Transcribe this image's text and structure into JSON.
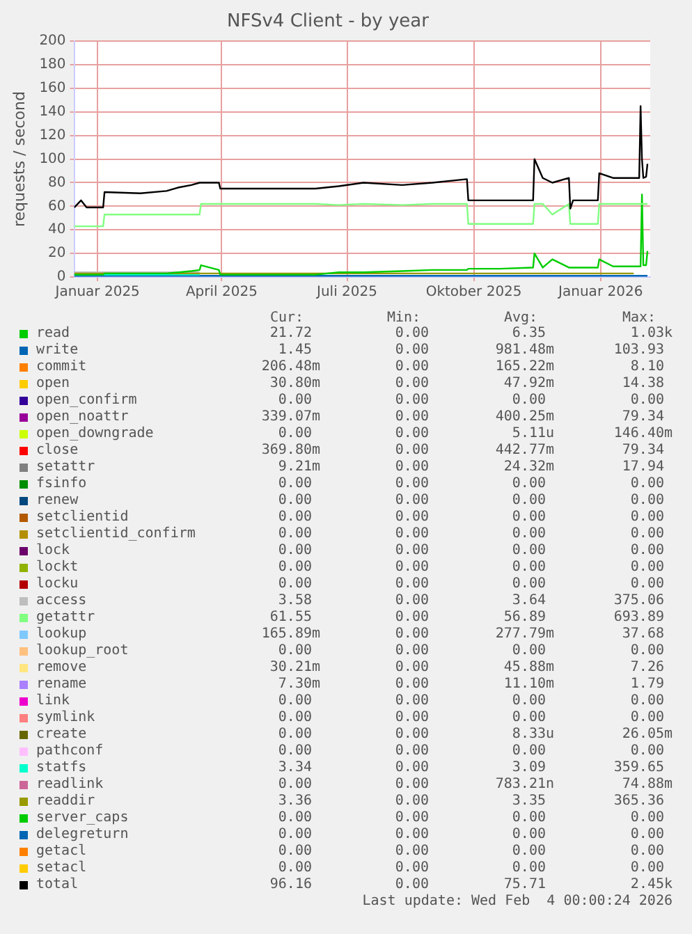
{
  "chart_data": {
    "type": "line",
    "title": "NFSv4 Client - by year",
    "ylabel": "requests / second",
    "x": [
      "2024-12-15",
      "2024-12-20",
      "2024-12-24",
      "2025-01-05",
      "2025-01-06",
      "2025-02-01",
      "2025-02-20",
      "2025-03-01",
      "2025-03-10",
      "2025-03-16",
      "2025-03-17",
      "2025-03-30",
      "2025-03-31",
      "2025-05-01",
      "2025-06-08",
      "2025-06-25",
      "2025-07-13",
      "2025-08-10",
      "2025-09-01",
      "2025-09-26",
      "2025-09-27",
      "2025-10-20",
      "2025-11-13",
      "2025-11-14",
      "2025-11-20",
      "2025-11-27",
      "2025-12-09",
      "2025-12-10",
      "2025-12-12",
      "2025-12-30",
      "2025-12-31",
      "2026-01-10",
      "2026-01-29",
      "2026-01-30",
      "2026-01-31",
      "2026-02-01",
      "2026-02-03",
      "2026-02-04"
    ],
    "xlim": [
      "2024-12-15",
      "2026-02-06"
    ],
    "xticks": [
      {
        "value": "2025-01-01",
        "label": "Januar 2025"
      },
      {
        "value": "2025-04-01",
        "label": "April 2025"
      },
      {
        "value": "2025-07-01",
        "label": "Juli 2025"
      },
      {
        "value": "2025-10-01",
        "label": "Oktober 2025"
      },
      {
        "value": "2026-01-01",
        "label": "Januar 2026"
      }
    ],
    "ylim": [
      0,
      200
    ],
    "yticks": [
      0,
      20,
      40,
      60,
      80,
      100,
      120,
      140,
      160,
      180,
      200
    ],
    "grid": true,
    "legend": "bottom",
    "marker": "none",
    "line_style": "solid",
    "series": [
      {
        "name": "read",
        "color": "#00cc00",
        "values": [
          2,
          2,
          2,
          2,
          3,
          3,
          3,
          4,
          5,
          6,
          10,
          6,
          2,
          2,
          2,
          4,
          4,
          5,
          6,
          6,
          7,
          7,
          8,
          20,
          8,
          15,
          8,
          8,
          8,
          8,
          15,
          9,
          9,
          9,
          70,
          10,
          10,
          22
        ]
      },
      {
        "name": "write",
        "color": "#0066b3",
        "x": [
          "2024-12-15",
          "2026-02-04"
        ],
        "values": [
          1,
          1
        ]
      },
      {
        "name": "commit",
        "color": "#ff8000",
        "values": [
          null,
          null,
          null,
          null,
          null,
          null,
          null,
          null,
          null,
          null,
          null,
          null,
          null,
          null,
          null,
          null,
          null,
          null,
          null,
          null,
          null,
          null,
          null,
          null,
          null,
          null,
          null,
          null,
          null,
          null,
          null,
          null,
          null,
          null,
          null,
          null,
          null,
          null
        ]
      },
      {
        "name": "open",
        "color": "#ffcc00",
        "values": [
          null,
          null,
          null,
          null,
          null,
          null,
          null,
          null,
          null,
          null,
          null,
          null,
          null,
          null,
          null,
          null,
          null,
          null,
          null,
          null,
          null,
          null,
          null,
          null,
          null,
          null,
          null,
          null,
          null,
          null,
          null,
          null,
          null,
          null,
          null,
          null,
          null,
          null
        ]
      },
      {
        "name": "open_confirm",
        "color": "#330099",
        "values": [
          null,
          null,
          null,
          null,
          null,
          null,
          null,
          null,
          null,
          null,
          null,
          null,
          null,
          null,
          null,
          null,
          null,
          null,
          null,
          null,
          null,
          null,
          null,
          null,
          null,
          null,
          null,
          null,
          null,
          null,
          null,
          null,
          null,
          null,
          null,
          null,
          null,
          null
        ]
      },
      {
        "name": "open_noattr",
        "color": "#990099",
        "values": [
          null,
          null,
          null,
          null,
          null,
          null,
          null,
          null,
          null,
          null,
          null,
          null,
          null,
          null,
          null,
          null,
          null,
          null,
          null,
          null,
          null,
          null,
          null,
          null,
          null,
          null,
          null,
          null,
          null,
          null,
          null,
          null,
          null,
          null,
          null,
          null,
          null,
          null
        ]
      },
      {
        "name": "open_downgrade",
        "color": "#ccff00",
        "values": [
          null,
          null,
          null,
          null,
          null,
          null,
          null,
          null,
          null,
          null,
          null,
          null,
          null,
          null,
          null,
          null,
          null,
          null,
          null,
          null,
          null,
          null,
          null,
          null,
          null,
          null,
          null,
          null,
          null,
          null,
          null,
          null,
          null,
          null,
          null,
          null,
          null,
          null
        ]
      },
      {
        "name": "close",
        "color": "#ff0000",
        "values": [
          null,
          null,
          null,
          null,
          null,
          null,
          null,
          null,
          null,
          null,
          null,
          null,
          null,
          null,
          null,
          null,
          null,
          null,
          null,
          null,
          null,
          null,
          null,
          null,
          null,
          null,
          null,
          null,
          null,
          null,
          null,
          null,
          null,
          null,
          null,
          null,
          null,
          null
        ]
      },
      {
        "name": "setattr",
        "color": "#808080",
        "values": [
          null,
          null,
          null,
          null,
          null,
          null,
          null,
          null,
          null,
          null,
          null,
          null,
          null,
          null,
          null,
          null,
          null,
          null,
          null,
          null,
          null,
          null,
          null,
          null,
          null,
          null,
          null,
          null,
          null,
          null,
          null,
          null,
          null,
          null,
          null,
          null,
          null,
          null
        ]
      },
      {
        "name": "fsinfo",
        "color": "#008f00",
        "values": [
          null,
          null,
          null,
          null,
          null,
          null,
          null,
          null,
          null,
          null,
          null,
          null,
          null,
          null,
          null,
          null,
          null,
          null,
          null,
          null,
          null,
          null,
          null,
          null,
          null,
          null,
          null,
          null,
          null,
          null,
          null,
          null,
          null,
          null,
          null,
          null,
          null,
          null
        ]
      },
      {
        "name": "renew",
        "color": "#00487d",
        "values": [
          null,
          null,
          null,
          null,
          null,
          null,
          null,
          null,
          null,
          null,
          null,
          null,
          null,
          null,
          null,
          null,
          null,
          null,
          null,
          null,
          null,
          null,
          null,
          null,
          null,
          null,
          null,
          null,
          null,
          null,
          null,
          null,
          null,
          null,
          null,
          null,
          null,
          null
        ]
      },
      {
        "name": "setclientid",
        "color": "#b35a00",
        "values": [
          null,
          null,
          null,
          null,
          null,
          null,
          null,
          null,
          null,
          null,
          null,
          null,
          null,
          null,
          null,
          null,
          null,
          null,
          null,
          null,
          null,
          null,
          null,
          null,
          null,
          null,
          null,
          null,
          null,
          null,
          null,
          null,
          null,
          null,
          null,
          null,
          null,
          null
        ]
      },
      {
        "name": "setclientid_confirm",
        "color": "#b38f00",
        "values": [
          null,
          null,
          null,
          null,
          null,
          null,
          null,
          null,
          null,
          null,
          null,
          null,
          null,
          null,
          null,
          null,
          null,
          null,
          null,
          null,
          null,
          null,
          null,
          null,
          null,
          null,
          null,
          null,
          null,
          null,
          null,
          null,
          null,
          null,
          null,
          null,
          null,
          null
        ]
      },
      {
        "name": "lock",
        "color": "#6b006b",
        "values": [
          null,
          null,
          null,
          null,
          null,
          null,
          null,
          null,
          null,
          null,
          null,
          null,
          null,
          null,
          null,
          null,
          null,
          null,
          null,
          null,
          null,
          null,
          null,
          null,
          null,
          null,
          null,
          null,
          null,
          null,
          null,
          null,
          null,
          null,
          null,
          null,
          null,
          null
        ]
      },
      {
        "name": "lockt",
        "color": "#8fb300",
        "values": [
          null,
          null,
          null,
          null,
          null,
          null,
          null,
          null,
          null,
          null,
          null,
          null,
          null,
          null,
          null,
          null,
          null,
          null,
          null,
          null,
          null,
          null,
          null,
          null,
          null,
          null,
          null,
          null,
          null,
          null,
          null,
          null,
          null,
          null,
          null,
          null,
          null,
          null
        ]
      },
      {
        "name": "locku",
        "color": "#b30000",
        "values": [
          null,
          null,
          null,
          null,
          null,
          null,
          null,
          null,
          null,
          null,
          null,
          null,
          null,
          null,
          null,
          null,
          null,
          null,
          null,
          null,
          null,
          null,
          null,
          null,
          null,
          null,
          null,
          null,
          null,
          null,
          null,
          null,
          null,
          null,
          null,
          null,
          null,
          null
        ]
      },
      {
        "name": "access",
        "color": "#bebebe",
        "x": [
          "2024-12-15",
          "2025-03-16"
        ],
        "values": [
          4,
          4
        ]
      },
      {
        "name": "getattr",
        "color": "#80ff80",
        "values": [
          43,
          43,
          43,
          43,
          53,
          53,
          53,
          53,
          53,
          53,
          62,
          62,
          62,
          62,
          62,
          61,
          62,
          61,
          62,
          62,
          45,
          45,
          45,
          62,
          62,
          53,
          62,
          45,
          45,
          45,
          62,
          62,
          62,
          62,
          62,
          62,
          62,
          62
        ]
      },
      {
        "name": "lookup",
        "color": "#80c9ff",
        "values": [
          null,
          null,
          null,
          null,
          null,
          null,
          null,
          null,
          null,
          null,
          null,
          null,
          null,
          null,
          null,
          null,
          null,
          null,
          null,
          null,
          null,
          null,
          null,
          null,
          null,
          null,
          null,
          null,
          null,
          null,
          null,
          null,
          null,
          null,
          null,
          null,
          null,
          null
        ]
      },
      {
        "name": "lookup_root",
        "color": "#ffc080",
        "values": [
          null,
          null,
          null,
          null,
          null,
          null,
          null,
          null,
          null,
          null,
          null,
          null,
          null,
          null,
          null,
          null,
          null,
          null,
          null,
          null,
          null,
          null,
          null,
          null,
          null,
          null,
          null,
          null,
          null,
          null,
          null,
          null,
          null,
          null,
          null,
          null,
          null,
          null
        ]
      },
      {
        "name": "remove",
        "color": "#ffe680",
        "values": [
          null,
          null,
          null,
          null,
          null,
          null,
          null,
          null,
          null,
          null,
          null,
          null,
          null,
          null,
          null,
          null,
          null,
          null,
          null,
          null,
          null,
          null,
          null,
          null,
          null,
          null,
          null,
          null,
          null,
          null,
          null,
          null,
          null,
          null,
          null,
          null,
          null,
          null
        ]
      },
      {
        "name": "rename",
        "color": "#aa80ff",
        "values": [
          null,
          null,
          null,
          null,
          null,
          null,
          null,
          null,
          null,
          null,
          null,
          null,
          null,
          null,
          null,
          null,
          null,
          null,
          null,
          null,
          null,
          null,
          null,
          null,
          null,
          null,
          null,
          null,
          null,
          null,
          null,
          null,
          null,
          null,
          null,
          null,
          null,
          null
        ]
      },
      {
        "name": "link",
        "color": "#ee00cc",
        "values": [
          null,
          null,
          null,
          null,
          null,
          null,
          null,
          null,
          null,
          null,
          null,
          null,
          null,
          null,
          null,
          null,
          null,
          null,
          null,
          null,
          null,
          null,
          null,
          null,
          null,
          null,
          null,
          null,
          null,
          null,
          null,
          null,
          null,
          null,
          null,
          null,
          null,
          null
        ]
      },
      {
        "name": "symlink",
        "color": "#ff8080",
        "values": [
          null,
          null,
          null,
          null,
          null,
          null,
          null,
          null,
          null,
          null,
          null,
          null,
          null,
          null,
          null,
          null,
          null,
          null,
          null,
          null,
          null,
          null,
          null,
          null,
          null,
          null,
          null,
          null,
          null,
          null,
          null,
          null,
          null,
          null,
          null,
          null,
          null,
          null
        ]
      },
      {
        "name": "create",
        "color": "#666600",
        "values": [
          null,
          null,
          null,
          null,
          null,
          null,
          null,
          null,
          null,
          null,
          null,
          null,
          null,
          null,
          null,
          null,
          null,
          null,
          null,
          null,
          null,
          null,
          null,
          null,
          null,
          null,
          null,
          null,
          null,
          null,
          null,
          null,
          null,
          null,
          null,
          null,
          null,
          null
        ]
      },
      {
        "name": "pathconf",
        "color": "#ffbfff",
        "values": [
          null,
          null,
          null,
          null,
          null,
          null,
          null,
          null,
          null,
          null,
          null,
          null,
          null,
          null,
          null,
          null,
          null,
          null,
          null,
          null,
          null,
          null,
          null,
          null,
          null,
          null,
          null,
          null,
          null,
          null,
          null,
          null,
          null,
          null,
          null,
          null,
          null,
          null
        ]
      },
      {
        "name": "statfs",
        "color": "#00ffcc",
        "x": [
          "2024-12-15",
          "2025-03-16"
        ],
        "values": [
          2,
          2
        ]
      },
      {
        "name": "readlink",
        "color": "#cc6699",
        "values": [
          null,
          null,
          null,
          null,
          null,
          null,
          null,
          null,
          null,
          null,
          null,
          null,
          null,
          null,
          null,
          null,
          null,
          null,
          null,
          null,
          null,
          null,
          null,
          null,
          null,
          null,
          null,
          null,
          null,
          null,
          null,
          null,
          null,
          null,
          null,
          null,
          null,
          null
        ]
      },
      {
        "name": "readdir",
        "color": "#999900",
        "x": [
          "2024-12-15",
          "2026-01-25"
        ],
        "values": [
          3,
          3
        ]
      },
      {
        "name": "server_caps",
        "color": "#00cc00",
        "values": [
          null,
          null,
          null,
          null,
          null,
          null,
          null,
          null,
          null,
          null,
          null,
          null,
          null,
          null,
          null,
          null,
          null,
          null,
          null,
          null,
          null,
          null,
          null,
          null,
          null,
          null,
          null,
          null,
          null,
          null,
          null,
          null,
          null,
          null,
          null,
          null,
          null,
          null
        ]
      },
      {
        "name": "delegreturn",
        "color": "#0066b3",
        "values": [
          null,
          null,
          null,
          null,
          null,
          null,
          null,
          null,
          null,
          null,
          null,
          null,
          null,
          null,
          null,
          null,
          null,
          null,
          null,
          null,
          null,
          null,
          null,
          null,
          null,
          null,
          null,
          null,
          null,
          null,
          null,
          null,
          null,
          null,
          null,
          null,
          null,
          null
        ]
      },
      {
        "name": "getacl",
        "color": "#ff8000",
        "values": [
          null,
          null,
          null,
          null,
          null,
          null,
          null,
          null,
          null,
          null,
          null,
          null,
          null,
          null,
          null,
          null,
          null,
          null,
          null,
          null,
          null,
          null,
          null,
          null,
          null,
          null,
          null,
          null,
          null,
          null,
          null,
          null,
          null,
          null,
          null,
          null,
          null,
          null
        ]
      },
      {
        "name": "setacl",
        "color": "#ffcc00",
        "values": [
          null,
          null,
          null,
          null,
          null,
          null,
          null,
          null,
          null,
          null,
          null,
          null,
          null,
          null,
          null,
          null,
          null,
          null,
          null,
          null,
          null,
          null,
          null,
          null,
          null,
          null,
          null,
          null,
          null,
          null,
          null,
          null,
          null,
          null,
          null,
          null,
          null,
          null
        ]
      },
      {
        "name": "total",
        "color": "#000000",
        "values": [
          59,
          65,
          59,
          59,
          72,
          71,
          73,
          76,
          78,
          80,
          80,
          80,
          75,
          75,
          75,
          77,
          80,
          78,
          80,
          83,
          65,
          65,
          65,
          100,
          84,
          80,
          84,
          58,
          65,
          65,
          88,
          84,
          84,
          145,
          100,
          84,
          85,
          96
        ]
      }
    ],
    "annotations": [
      "Cur:",
      "Min:",
      "Avg:",
      "Max:",
      "21.72",
      "0.00",
      "6.35",
      "1.03k",
      "1.45",
      "0.00",
      "981.48m",
      "103.93",
      "206.48m",
      "0.00",
      "165.22m",
      "8.10",
      "30.80m",
      "0.00",
      "47.92m",
      "14.38",
      "0.00",
      "0.00",
      "0.00",
      "0.00",
      "339.07m",
      "0.00",
      "400.25m",
      "79.34",
      "0.00",
      "0.00",
      "5.11u",
      "146.40m",
      "369.80m",
      "0.00",
      "442.77m",
      "79.34",
      "9.21m",
      "0.00",
      "24.32m",
      "17.94",
      "0.00",
      "0.00",
      "0.00",
      "0.00",
      "0.00",
      "0.00",
      "0.00",
      "0.00",
      "0.00",
      "0.00",
      "0.00",
      "0.00",
      "0.00",
      "0.00",
      "0.00",
      "0.00",
      "0.00",
      "0.00",
      "0.00",
      "0.00",
      "0.00",
      "0.00",
      "0.00",
      "0.00",
      "0.00",
      "0.00",
      "0.00",
      "0.00",
      "3.58",
      "0.00",
      "3.64",
      "375.06",
      "61.55",
      "0.00",
      "56.89",
      "693.89",
      "165.89m",
      "0.00",
      "277.79m",
      "37.68",
      "0.00",
      "0.00",
      "0.00",
      "0.00",
      "30.21m",
      "0.00",
      "45.88m",
      "7.26",
      "7.30m",
      "0.00",
      "11.10m",
      "1.79",
      "0.00",
      "0.00",
      "0.00",
      "0.00",
      "0.00",
      "0.00",
      "0.00",
      "0.00",
      "0.00",
      "0.00",
      "8.33u",
      "26.05m",
      "0.00",
      "0.00",
      "0.00",
      "0.00",
      "3.34",
      "0.00",
      "3.09",
      "359.65",
      "0.00",
      "0.00",
      "783.21n",
      "74.88m",
      "3.36",
      "0.00",
      "3.35",
      "365.36",
      "0.00",
      "0.00",
      "0.00",
      "0.00",
      "0.00",
      "0.00",
      "0.00",
      "0.00",
      "0.00",
      "0.00",
      "0.00",
      "0.00",
      "0.00",
      "0.00",
      "0.00",
      "0.00",
      "96.16",
      "0.00",
      "75.71",
      "2.45k",
      "Last update: Wed Feb  4 00:00:24 2026"
    ]
  }
}
